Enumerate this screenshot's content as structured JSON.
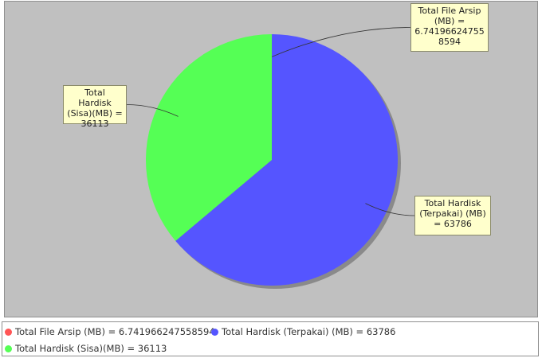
{
  "chart_data": {
    "type": "pie",
    "slices": [
      {
        "label": "Total File Arsip (MB)",
        "value": 6.741966247558594,
        "color": "#ff5555",
        "legend": "Total File Arsip (MB) = 6.741966247558594",
        "callout": "Total File Arsip\n(MB) =\n6.74196624755\n8594"
      },
      {
        "label": "Total Hardisk (Terpakai) (MB)",
        "value": 63786,
        "color": "#5555ff",
        "legend": "Total Hardisk (Terpakai) (MB) = 63786",
        "callout": "Total Hardisk\n(Terpakai) (MB)\n= 63786"
      },
      {
        "label": "Total Hardisk (Sisa)(MB)",
        "value": 36113,
        "color": "#55ff55",
        "legend": "Total Hardisk (Sisa)(MB) = 36113",
        "callout": "Total Hardisk\n(Sisa)(MB) =\n36113"
      }
    ],
    "start": "top",
    "direction": "clockwise",
    "legend_position": "bottom"
  }
}
